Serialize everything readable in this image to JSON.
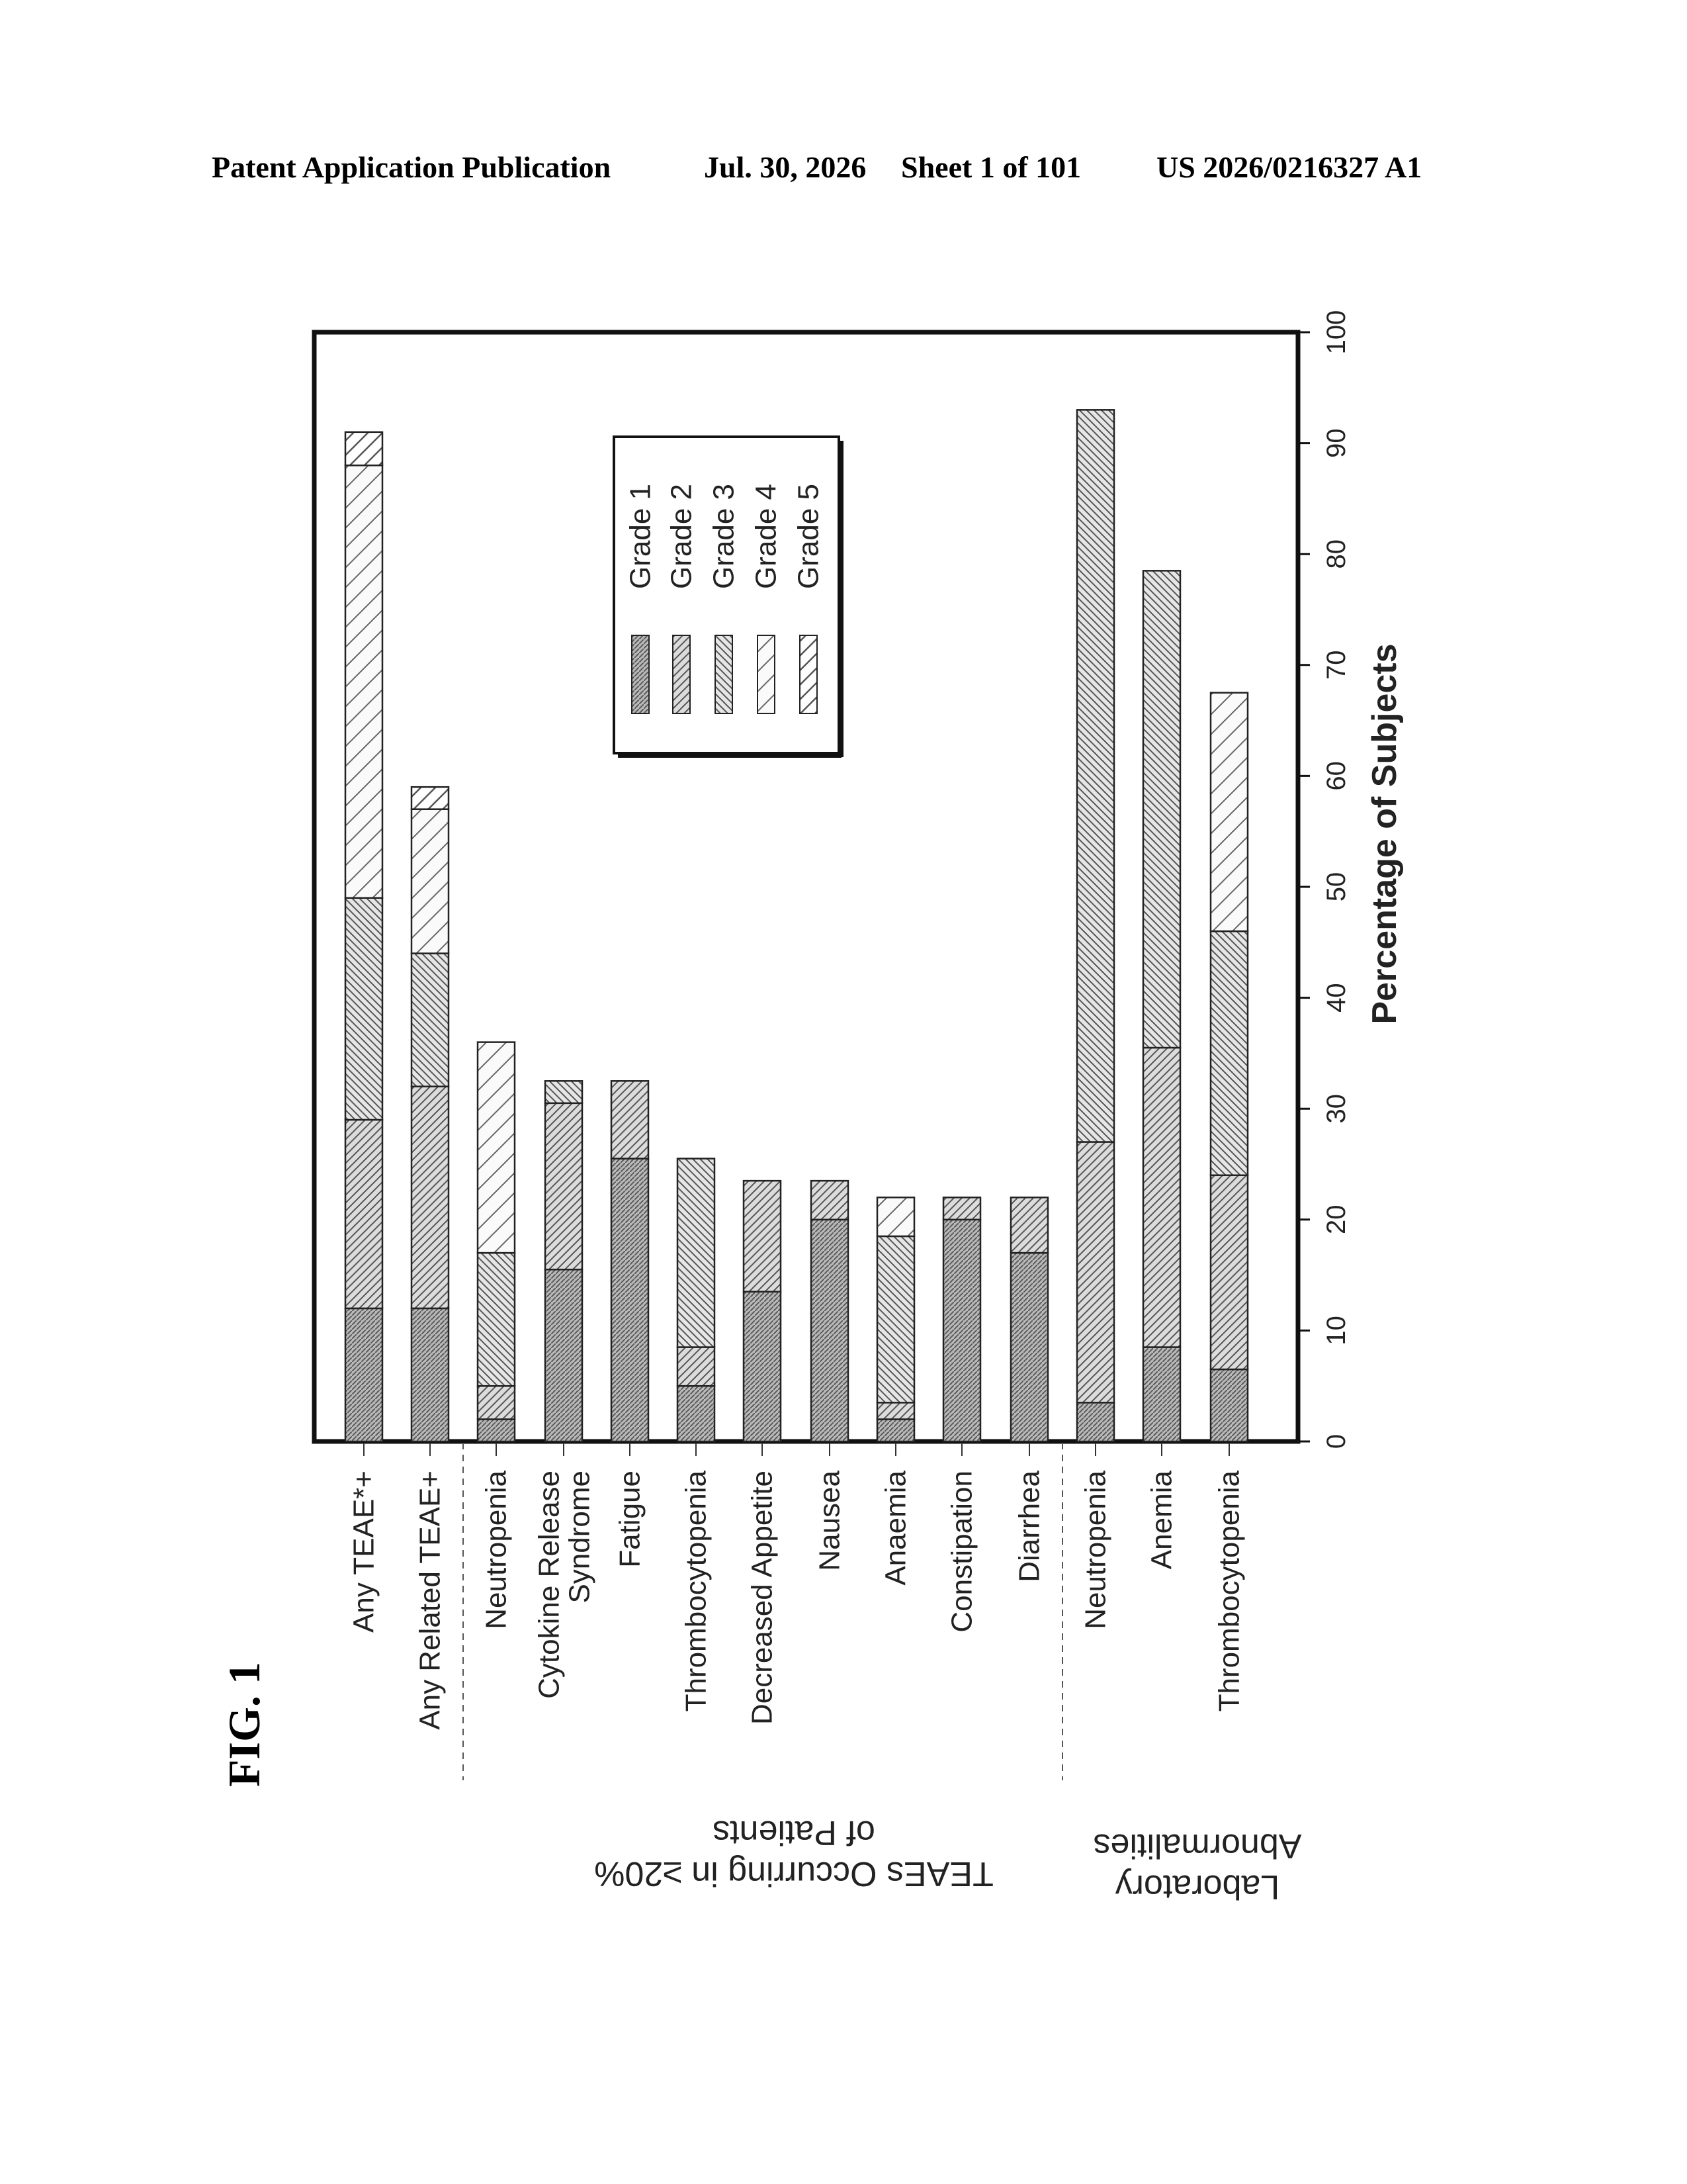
{
  "header": {
    "publication": "Patent Application Publication",
    "date": "Jul. 30, 2026",
    "sheet": "Sheet 1 of 101",
    "number": "US 2026/0216327 A1"
  },
  "figure_label": "FIG. 1",
  "chart_data": {
    "type": "bar",
    "orientation": "horizontal-stacked",
    "xlabel": "Percentage of Subjects",
    "xlim": [
      0,
      100
    ],
    "xticks": [
      "0",
      "10",
      "20",
      "30",
      "40",
      "50",
      "60",
      "70",
      "80",
      "90",
      "100"
    ],
    "legend_placement": "top-center",
    "series": [
      {
        "name": "Grade 1"
      },
      {
        "name": "Grade 2"
      },
      {
        "name": "Grade 3"
      },
      {
        "name": "Grade 4"
      },
      {
        "name": "Grade 5"
      }
    ],
    "groups": [
      {
        "label": "TEAEs Occurring in ≥20% of Patients"
      },
      {
        "label": "Laboratory Abnormalities"
      }
    ],
    "categories": [
      {
        "label": "Any TEAE*+",
        "values": [
          12,
          17,
          20,
          39,
          3
        ]
      },
      {
        "label": "Any Related TEAE+",
        "values": [
          12,
          20,
          12,
          13,
          2
        ]
      },
      {
        "label": "Neutropenia",
        "values": [
          2,
          3,
          12,
          19,
          0
        ]
      },
      {
        "label": "Cytokine Release Syndrome",
        "values": [
          15.5,
          15,
          2,
          0,
          0
        ]
      },
      {
        "label": "Fatigue",
        "values": [
          25.5,
          7,
          0,
          0,
          0
        ]
      },
      {
        "label": "Thrombocytopenia",
        "values": [
          5,
          3.5,
          17,
          0,
          0
        ]
      },
      {
        "label": "Decreased Appetite",
        "values": [
          13.5,
          10,
          0,
          0,
          0
        ]
      },
      {
        "label": "Nausea",
        "values": [
          20,
          3.5,
          0,
          0,
          0
        ]
      },
      {
        "label": "Anaemia",
        "values": [
          2,
          1.5,
          15,
          3.5,
          0
        ]
      },
      {
        "label": "Constipation",
        "values": [
          20,
          2,
          0,
          0,
          0
        ]
      },
      {
        "label": "Diarrhea",
        "values": [
          17,
          5,
          0,
          0,
          0
        ]
      },
      {
        "label": "Neutropenia",
        "values": [
          3.5,
          23.5,
          66,
          0,
          0
        ]
      },
      {
        "label": "Anemia",
        "values": [
          8.5,
          27,
          43,
          0,
          0
        ]
      },
      {
        "label": "Thrombocytopenia",
        "values": [
          6.5,
          17.5,
          22,
          21.5,
          0
        ]
      }
    ]
  }
}
